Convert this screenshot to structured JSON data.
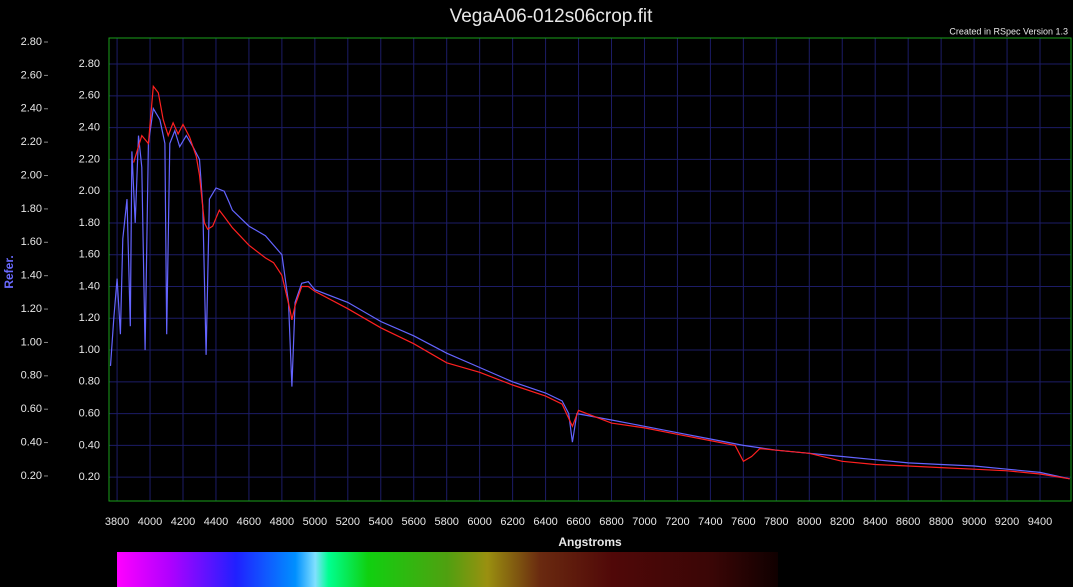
{
  "chart_data": {
    "type": "line",
    "title": "VegaA06-012s06crop.fit",
    "annotation": "Created in RSpec Version 1.3",
    "x_label": "Angstroms",
    "y_label": "Refer.",
    "xlim": [
      3751,
      9588
    ],
    "xticks": [
      3800,
      4000,
      4200,
      4400,
      4600,
      4800,
      5000,
      5200,
      5400,
      5600,
      5800,
      6000,
      6200,
      6400,
      6600,
      6800,
      7000,
      7200,
      7400,
      7600,
      7800,
      8000,
      8200,
      8400,
      8600,
      8800,
      9000,
      9200,
      9400
    ],
    "ylim": [
      0.05,
      2.964
    ],
    "yticks": [
      {
        "value": 0.2,
        "label": "0.20"
      },
      {
        "value": 0.4,
        "label": "0.40"
      },
      {
        "value": 0.6,
        "label": "0.60"
      },
      {
        "value": 0.8,
        "label": "0.80"
      },
      {
        "value": 1.0,
        "label": "1.00"
      },
      {
        "value": 1.2,
        "label": "1.20"
      },
      {
        "value": 1.4,
        "label": "1.40"
      },
      {
        "value": 1.6,
        "label": "1.60"
      },
      {
        "value": 1.8,
        "label": "1.80"
      },
      {
        "value": 2.0,
        "label": "2.00"
      },
      {
        "value": 2.2,
        "label": "2.20"
      },
      {
        "value": 2.4,
        "label": "2.40"
      },
      {
        "value": 2.6,
        "label": "2.60"
      },
      {
        "value": 2.8,
        "label": "2.80"
      }
    ],
    "y2lim": [
      0.05,
      2.824
    ],
    "y2ticks": [
      {
        "value": 0.2,
        "label": "0.20"
      },
      {
        "value": 0.4,
        "label": "0.40"
      },
      {
        "value": 0.6,
        "label": "0.60"
      },
      {
        "value": 0.8,
        "label": "0.80"
      },
      {
        "value": 1.0,
        "label": "1.00"
      },
      {
        "value": 1.2,
        "label": "1.20"
      },
      {
        "value": 1.4,
        "label": "1.40"
      },
      {
        "value": 1.6,
        "label": "1.60"
      },
      {
        "value": 1.8,
        "label": "1.80"
      },
      {
        "value": 2.0,
        "label": "2.00"
      },
      {
        "value": 2.2,
        "label": "2.20"
      },
      {
        "value": 2.4,
        "label": "2.40"
      },
      {
        "value": 2.6,
        "label": "2.60"
      },
      {
        "value": 2.8,
        "label": "2.80"
      }
    ],
    "grid": true,
    "series": [
      {
        "color": "#6464ff",
        "x": [
          3760,
          3780,
          3800,
          3820,
          3835,
          3860,
          3880,
          3890,
          3910,
          3930,
          3950,
          3970,
          3990,
          4020,
          4060,
          4090,
          4101,
          4120,
          4150,
          4180,
          4220,
          4260,
          4300,
          4320,
          4340,
          4360,
          4400,
          4450,
          4480,
          4500,
          4600,
          4700,
          4800,
          4840,
          4861,
          4880,
          4920,
          4960,
          5000,
          5200,
          5400,
          5600,
          5800,
          6000,
          6200,
          6400,
          6500,
          6540,
          6563,
          6590,
          6800,
          7000,
          7200,
          7400,
          7600,
          7800,
          8000,
          8200,
          8400,
          8600,
          8800,
          9000,
          9200,
          9400,
          9580
        ],
        "values": [
          0.9,
          1.2,
          1.45,
          1.1,
          1.7,
          1.95,
          1.15,
          2.25,
          1.8,
          2.35,
          2.15,
          1.0,
          2.3,
          2.52,
          2.45,
          2.3,
          1.1,
          2.3,
          2.38,
          2.28,
          2.35,
          2.28,
          2.2,
          1.9,
          0.97,
          1.95,
          2.02,
          2.0,
          1.93,
          1.88,
          1.78,
          1.72,
          1.6,
          1.3,
          0.77,
          1.3,
          1.42,
          1.43,
          1.38,
          1.3,
          1.18,
          1.09,
          0.98,
          0.89,
          0.8,
          0.73,
          0.68,
          0.6,
          0.42,
          0.6,
          0.56,
          0.52,
          0.48,
          0.44,
          0.4,
          0.37,
          0.35,
          0.33,
          0.31,
          0.29,
          0.28,
          0.27,
          0.25,
          0.23,
          0.19
        ]
      },
      {
        "color": "#ff2020",
        "x": [
          3900,
          3950,
          3990,
          4020,
          4050,
          4080,
          4110,
          4140,
          4170,
          4200,
          4240,
          4280,
          4300,
          4330,
          4350,
          4380,
          4420,
          4450,
          4500,
          4600,
          4700,
          4750,
          4800,
          4850,
          4861,
          4880,
          4920,
          4960,
          5000,
          5200,
          5400,
          5600,
          5800,
          6000,
          6200,
          6400,
          6500,
          6563,
          6600,
          6800,
          7000,
          7200,
          7400,
          7550,
          7600,
          7650,
          7700,
          8000,
          8200,
          8400,
          8600,
          8800,
          9000,
          9200,
          9400,
          9580
        ],
        "values": [
          2.18,
          2.35,
          2.3,
          2.66,
          2.62,
          2.45,
          2.35,
          2.43,
          2.36,
          2.42,
          2.34,
          2.22,
          2.1,
          1.8,
          1.76,
          1.78,
          1.88,
          1.84,
          1.77,
          1.66,
          1.58,
          1.55,
          1.47,
          1.25,
          1.19,
          1.28,
          1.4,
          1.4,
          1.37,
          1.26,
          1.14,
          1.04,
          0.92,
          0.86,
          0.78,
          0.71,
          0.66,
          0.52,
          0.62,
          0.54,
          0.51,
          0.47,
          0.43,
          0.4,
          0.3,
          0.33,
          0.38,
          0.35,
          0.3,
          0.28,
          0.27,
          0.26,
          0.25,
          0.24,
          0.22,
          0.19
        ]
      }
    ]
  }
}
